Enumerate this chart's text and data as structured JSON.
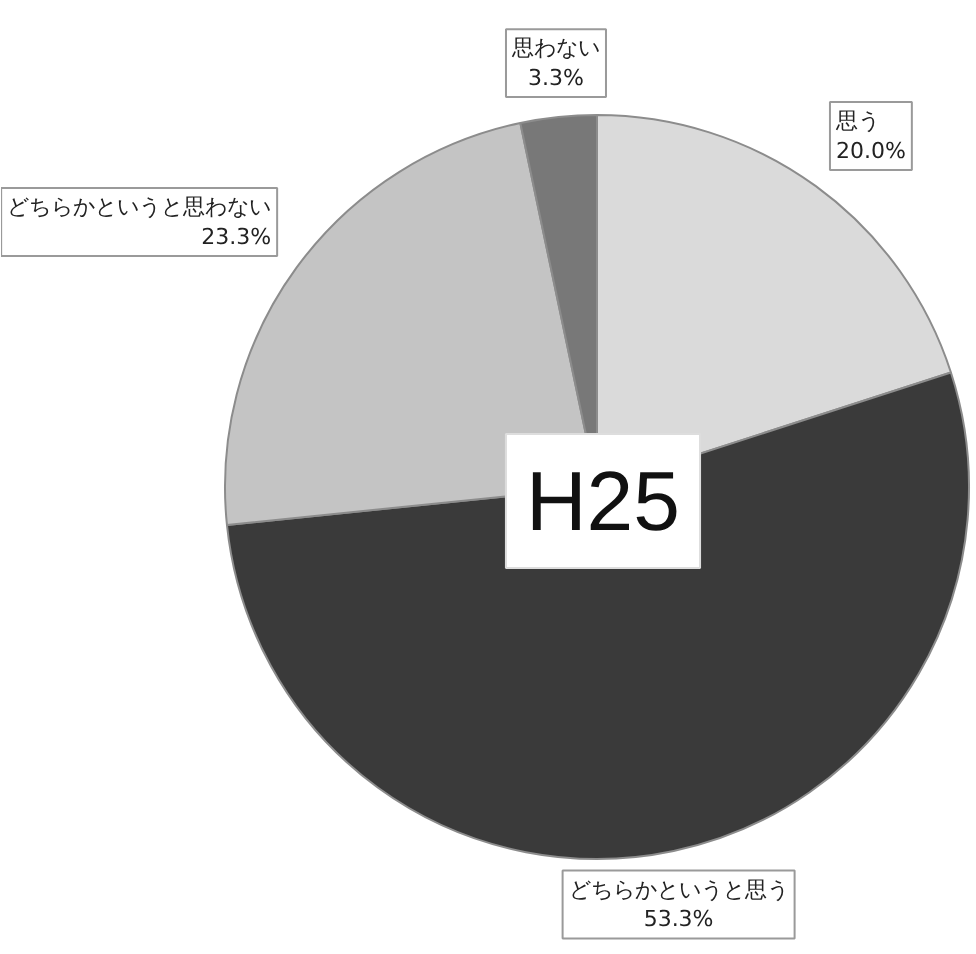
{
  "chart_data": {
    "type": "pie",
    "title": "H25",
    "categories": [
      "思う",
      "どちらかというと思う",
      "どちらかというと思わない",
      "思わない"
    ],
    "values": [
      20.0,
      53.3,
      23.3,
      3.3
    ],
    "value_labels": [
      "20.0%",
      "53.3%",
      "23.3%",
      "3.3%"
    ],
    "colors": [
      "#dadada",
      "#3a3a3a",
      "#c4c4c4",
      "#787878"
    ]
  }
}
